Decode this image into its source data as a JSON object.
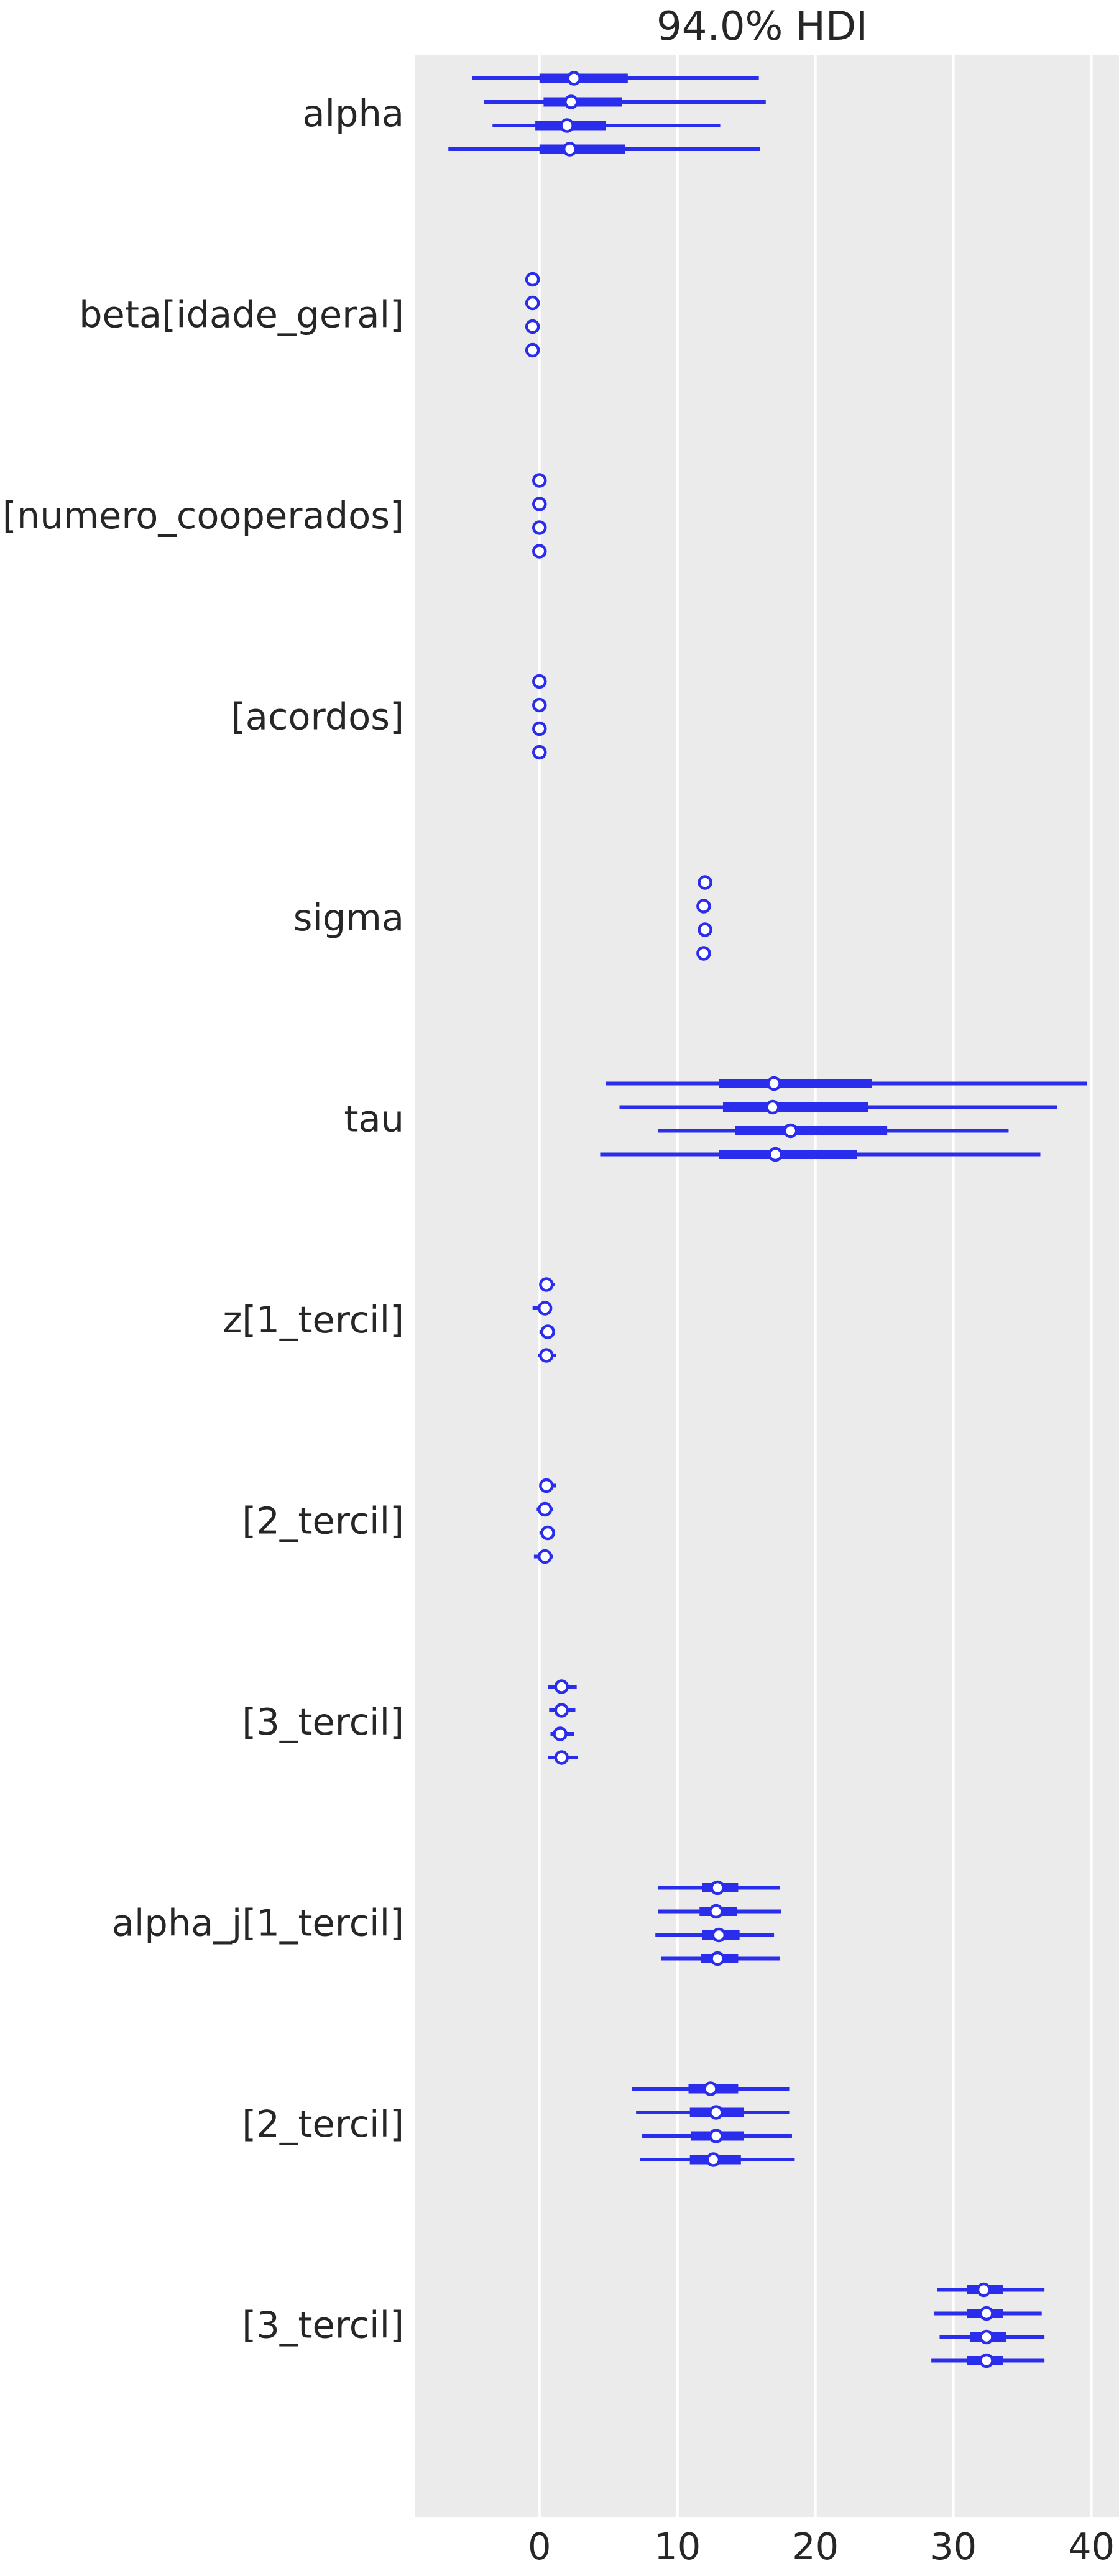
{
  "colors": {
    "background": "#ebebeb",
    "grid": "#ffffff",
    "series": "#2a2eec",
    "text": "#262626",
    "marker_fill": "#ffffff"
  },
  "chart_data": {
    "type": "forest",
    "title": "94.0% HDI",
    "grid": true,
    "xlim": [
      -9,
      42
    ],
    "xticks": [
      0,
      10,
      20,
      30,
      40
    ],
    "xtick_labels": [
      "0",
      "10",
      "20",
      "30",
      "40"
    ],
    "chains": 4,
    "parameters": [
      {
        "label": "alpha",
        "chains": [
          {
            "hdi_low": -4.9,
            "q25": 0.0,
            "median": 2.5,
            "q75": 6.4,
            "hdi_high": 15.9
          },
          {
            "hdi_low": -4.0,
            "q25": 0.3,
            "median": 2.3,
            "q75": 6.0,
            "hdi_high": 16.4
          },
          {
            "hdi_low": -3.4,
            "q25": -0.3,
            "median": 2.0,
            "q75": 4.8,
            "hdi_high": 13.1
          },
          {
            "hdi_low": -6.6,
            "q25": 0.0,
            "median": 2.2,
            "q75": 6.2,
            "hdi_high": 16.0
          }
        ]
      },
      {
        "label": "beta[idade_geral]",
        "chains": [
          {
            "hdi_low": -0.6,
            "q25": -0.6,
            "median": -0.5,
            "q75": -0.5,
            "hdi_high": -0.4
          },
          {
            "hdi_low": -0.6,
            "q25": -0.6,
            "median": -0.5,
            "q75": -0.5,
            "hdi_high": -0.4
          },
          {
            "hdi_low": -0.6,
            "q25": -0.6,
            "median": -0.5,
            "q75": -0.5,
            "hdi_high": -0.4
          },
          {
            "hdi_low": -0.6,
            "q25": -0.6,
            "median": -0.5,
            "q75": -0.5,
            "hdi_high": -0.4
          }
        ]
      },
      {
        "label": "[numero_cooperados]",
        "chains": [
          {
            "hdi_low": -0.1,
            "q25": 0.0,
            "median": 0.0,
            "q75": 0.0,
            "hdi_high": 0.1
          },
          {
            "hdi_low": -0.1,
            "q25": 0.0,
            "median": 0.0,
            "q75": 0.0,
            "hdi_high": 0.1
          },
          {
            "hdi_low": -0.1,
            "q25": 0.0,
            "median": 0.0,
            "q75": 0.0,
            "hdi_high": 0.1
          },
          {
            "hdi_low": -0.1,
            "q25": 0.0,
            "median": 0.0,
            "q75": 0.0,
            "hdi_high": 0.1
          }
        ]
      },
      {
        "label": "[acordos]",
        "chains": [
          {
            "hdi_low": -0.1,
            "q25": 0.0,
            "median": 0.0,
            "q75": 0.0,
            "hdi_high": 0.1
          },
          {
            "hdi_low": -0.1,
            "q25": 0.0,
            "median": 0.0,
            "q75": 0.0,
            "hdi_high": 0.1
          },
          {
            "hdi_low": -0.1,
            "q25": 0.0,
            "median": 0.0,
            "q75": 0.0,
            "hdi_high": 0.1
          },
          {
            "hdi_low": -0.1,
            "q25": 0.0,
            "median": 0.0,
            "q75": 0.0,
            "hdi_high": 0.1
          }
        ]
      },
      {
        "label": "sigma",
        "chains": [
          {
            "hdi_low": 11.6,
            "q25": 11.8,
            "median": 12.0,
            "q75": 12.2,
            "hdi_high": 12.4
          },
          {
            "hdi_low": 11.6,
            "q25": 11.8,
            "median": 11.9,
            "q75": 12.1,
            "hdi_high": 12.3
          },
          {
            "hdi_low": 11.6,
            "q25": 11.8,
            "median": 12.0,
            "q75": 12.2,
            "hdi_high": 12.4
          },
          {
            "hdi_low": 11.5,
            "q25": 11.7,
            "median": 11.9,
            "q75": 12.1,
            "hdi_high": 12.3
          }
        ]
      },
      {
        "label": "tau",
        "chains": [
          {
            "hdi_low": 4.8,
            "q25": 13.0,
            "median": 17.0,
            "q75": 24.1,
            "hdi_high": 39.7
          },
          {
            "hdi_low": 5.8,
            "q25": 13.3,
            "median": 16.9,
            "q75": 23.8,
            "hdi_high": 37.5
          },
          {
            "hdi_low": 8.6,
            "q25": 14.2,
            "median": 18.2,
            "q75": 25.2,
            "hdi_high": 34.0
          },
          {
            "hdi_low": 4.4,
            "q25": 13.0,
            "median": 17.1,
            "q75": 23.0,
            "hdi_high": 36.3
          }
        ]
      },
      {
        "label": "z[1_tercil]",
        "chains": [
          {
            "hdi_low": 0.0,
            "q25": 0.3,
            "median": 0.5,
            "q75": 0.8,
            "hdi_high": 1.1
          },
          {
            "hdi_low": -0.5,
            "q25": 0.1,
            "median": 0.4,
            "q75": 0.6,
            "hdi_high": 0.8
          },
          {
            "hdi_low": 0.0,
            "q25": 0.3,
            "median": 0.6,
            "q75": 0.8,
            "hdi_high": 1.0
          },
          {
            "hdi_low": -0.1,
            "q25": 0.2,
            "median": 0.5,
            "q75": 0.7,
            "hdi_high": 1.2
          }
        ]
      },
      {
        "label": "[2_tercil]",
        "chains": [
          {
            "hdi_low": 0.0,
            "q25": 0.3,
            "median": 0.5,
            "q75": 0.8,
            "hdi_high": 1.2
          },
          {
            "hdi_low": -0.2,
            "q25": 0.1,
            "median": 0.4,
            "q75": 0.6,
            "hdi_high": 1.0
          },
          {
            "hdi_low": 0.0,
            "q25": 0.3,
            "median": 0.6,
            "q75": 0.8,
            "hdi_high": 1.0
          },
          {
            "hdi_low": -0.4,
            "q25": 0.1,
            "median": 0.4,
            "q75": 0.6,
            "hdi_high": 1.0
          }
        ]
      },
      {
        "label": "[3_tercil]",
        "chains": [
          {
            "hdi_low": 0.6,
            "q25": 1.2,
            "median": 1.6,
            "q75": 2.0,
            "hdi_high": 2.7
          },
          {
            "hdi_low": 0.7,
            "q25": 1.2,
            "median": 1.6,
            "q75": 1.9,
            "hdi_high": 2.6
          },
          {
            "hdi_low": 0.8,
            "q25": 1.2,
            "median": 1.5,
            "q75": 1.8,
            "hdi_high": 2.5
          },
          {
            "hdi_low": 0.6,
            "q25": 1.2,
            "median": 1.6,
            "q75": 2.0,
            "hdi_high": 2.8
          }
        ]
      },
      {
        "label": "alpha_j[1_tercil]",
        "chains": [
          {
            "hdi_low": 8.6,
            "q25": 11.8,
            "median": 12.9,
            "q75": 14.4,
            "hdi_high": 17.4
          },
          {
            "hdi_low": 8.6,
            "q25": 11.6,
            "median": 12.8,
            "q75": 14.3,
            "hdi_high": 17.5
          },
          {
            "hdi_low": 8.4,
            "q25": 11.8,
            "median": 13.0,
            "q75": 14.5,
            "hdi_high": 17.0
          },
          {
            "hdi_low": 8.8,
            "q25": 11.7,
            "median": 12.9,
            "q75": 14.4,
            "hdi_high": 17.4
          }
        ]
      },
      {
        "label": "[2_tercil]",
        "chains": [
          {
            "hdi_low": 6.7,
            "q25": 10.8,
            "median": 12.4,
            "q75": 14.4,
            "hdi_high": 18.1
          },
          {
            "hdi_low": 7.0,
            "q25": 10.9,
            "median": 12.8,
            "q75": 14.8,
            "hdi_high": 18.1
          },
          {
            "hdi_low": 7.4,
            "q25": 11.0,
            "median": 12.8,
            "q75": 14.8,
            "hdi_high": 18.3
          },
          {
            "hdi_low": 7.3,
            "q25": 10.9,
            "median": 12.6,
            "q75": 14.6,
            "hdi_high": 18.5
          }
        ]
      },
      {
        "label": "[3_tercil]",
        "chains": [
          {
            "hdi_low": 28.8,
            "q25": 31.0,
            "median": 32.2,
            "q75": 33.6,
            "hdi_high": 36.6
          },
          {
            "hdi_low": 28.6,
            "q25": 31.0,
            "median": 32.4,
            "q75": 33.6,
            "hdi_high": 36.4
          },
          {
            "hdi_low": 29.0,
            "q25": 31.2,
            "median": 32.4,
            "q75": 33.8,
            "hdi_high": 36.6
          },
          {
            "hdi_low": 28.4,
            "q25": 31.0,
            "median": 32.4,
            "q75": 33.6,
            "hdi_high": 36.6
          }
        ]
      }
    ]
  }
}
